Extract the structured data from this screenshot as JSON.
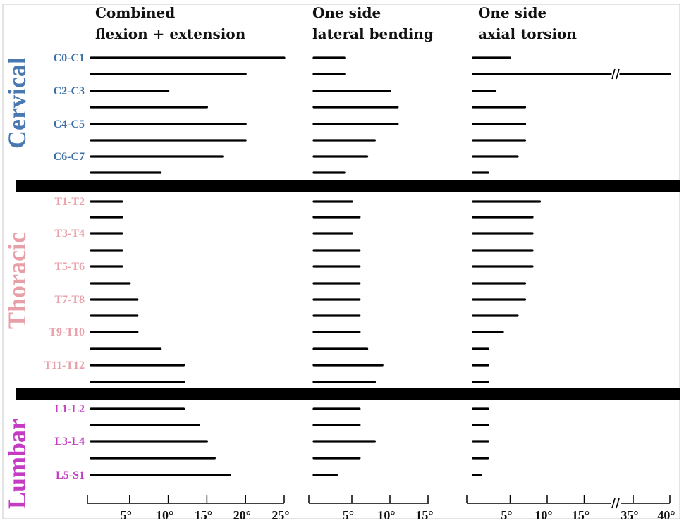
{
  "chart_data": {
    "type": "bar",
    "orientation": "horizontal",
    "panels": [
      {
        "title_line1": "Combined",
        "title_line2": "flexion + extension",
        "ticks": [
          5,
          10,
          15,
          20,
          25
        ],
        "tick_labels": [
          "5°",
          "10°",
          "15°",
          "20°",
          "25°"
        ],
        "xlim": [
          0,
          25
        ]
      },
      {
        "title_line1": "One side",
        "title_line2": "lateral bending",
        "ticks": [
          5,
          10,
          15
        ],
        "tick_labels": [
          "5°",
          "10°",
          "15°"
        ],
        "xlim": [
          0,
          15
        ]
      },
      {
        "title_line1": "One side",
        "title_line2": "axial torsion",
        "ticks": [
          5,
          10,
          15,
          35,
          40
        ],
        "tick_labels": [
          "5°",
          "10°",
          "15°",
          "35°",
          "40°"
        ],
        "xlim": [
          0,
          40
        ],
        "axis_break": [
          18,
          33
        ]
      }
    ],
    "regions": [
      {
        "name": "Cervical",
        "color": "#3b6fa5",
        "label_color": "#4a78b0"
      },
      {
        "name": "Thoracic",
        "color": "#e9a1a9",
        "label_color": "#e7a0a8"
      },
      {
        "name": "Lumbar",
        "color": "#c33ec3",
        "label_color": "#c43bc4"
      }
    ],
    "levels": [
      {
        "label": "C0-C1",
        "region": 0,
        "values": [
          25,
          4,
          5
        ]
      },
      {
        "label": "",
        "region": 0,
        "values": [
          20,
          4,
          40
        ]
      },
      {
        "label": "C2-C3",
        "region": 0,
        "values": [
          10,
          10,
          3
        ]
      },
      {
        "label": "",
        "region": 0,
        "values": [
          15,
          11,
          7
        ]
      },
      {
        "label": "C4-C5",
        "region": 0,
        "values": [
          20,
          11,
          7
        ]
      },
      {
        "label": "",
        "region": 0,
        "values": [
          20,
          8,
          7
        ]
      },
      {
        "label": "C6-C7",
        "region": 0,
        "values": [
          17,
          7,
          6
        ]
      },
      {
        "label": "",
        "region": 0,
        "values": [
          9,
          4,
          2
        ]
      },
      {
        "label": "T1-T2",
        "region": 1,
        "values": [
          4,
          5,
          9
        ]
      },
      {
        "label": "",
        "region": 1,
        "values": [
          4,
          6,
          8
        ]
      },
      {
        "label": "T3-T4",
        "region": 1,
        "values": [
          4,
          5,
          8
        ]
      },
      {
        "label": "",
        "region": 1,
        "values": [
          4,
          6,
          8
        ]
      },
      {
        "label": "T5-T6",
        "region": 1,
        "values": [
          4,
          6,
          8
        ]
      },
      {
        "label": "",
        "region": 1,
        "values": [
          5,
          6,
          7
        ]
      },
      {
        "label": "T7-T8",
        "region": 1,
        "values": [
          6,
          6,
          7
        ]
      },
      {
        "label": "",
        "region": 1,
        "values": [
          6,
          6,
          6
        ]
      },
      {
        "label": "T9-T10",
        "region": 1,
        "values": [
          6,
          6,
          4
        ]
      },
      {
        "label": "",
        "region": 1,
        "values": [
          9,
          7,
          2
        ]
      },
      {
        "label": "T11-T12",
        "region": 1,
        "values": [
          12,
          9,
          2
        ]
      },
      {
        "label": "",
        "region": 1,
        "values": [
          12,
          8,
          2
        ]
      },
      {
        "label": "L1-L2",
        "region": 2,
        "values": [
          12,
          6,
          2
        ]
      },
      {
        "label": "",
        "region": 2,
        "values": [
          14,
          6,
          2
        ]
      },
      {
        "label": "L3-L4",
        "region": 2,
        "values": [
          15,
          8,
          2
        ]
      },
      {
        "label": "",
        "region": 2,
        "values": [
          16,
          6,
          2
        ]
      },
      {
        "label": "L5-S1",
        "region": 2,
        "values": [
          18,
          3,
          1
        ]
      }
    ],
    "legend": "none",
    "grid": false
  }
}
